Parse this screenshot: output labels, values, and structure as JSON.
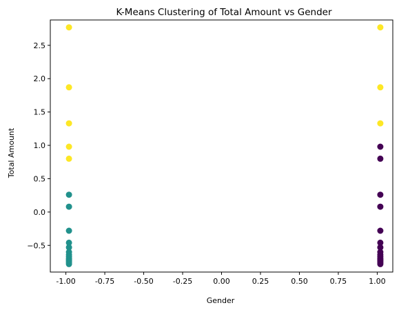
{
  "chart_data": {
    "type": "scatter",
    "title": "K-Means Clustering of Total Amount vs Gender",
    "xlabel": "Gender",
    "ylabel": "Total Amount",
    "xlim": [
      -1.1,
      1.1
    ],
    "ylim": [
      -0.9,
      2.88
    ],
    "xticks": [
      "-1.00",
      "-0.75",
      "-0.50",
      "-0.25",
      "0.00",
      "0.25",
      "0.50",
      "0.75",
      "1.00"
    ],
    "xtick_values": [
      -1.0,
      -0.75,
      -0.5,
      -0.25,
      0.0,
      0.25,
      0.5,
      0.75,
      1.0
    ],
    "yticks": [
      "−0.5",
      "0.0",
      "0.5",
      "1.0",
      "1.5",
      "2.0",
      "2.5"
    ],
    "ytick_values": [
      -0.5,
      0.0,
      0.5,
      1.0,
      1.5,
      2.0,
      2.5
    ],
    "grid": false,
    "colors": {
      "cluster_0": "#440154",
      "cluster_1": "#21918c",
      "cluster_2": "#fde725"
    },
    "series": [
      {
        "cluster": "cluster_2",
        "x": [
          -0.98,
          -0.98,
          -0.98,
          -0.98,
          -0.98,
          1.02,
          1.02,
          1.02
        ],
        "y": [
          2.77,
          1.87,
          1.33,
          0.98,
          0.8,
          2.77,
          1.87,
          1.33
        ]
      },
      {
        "cluster": "cluster_1",
        "x": [
          -0.98,
          -0.98,
          -0.98,
          -0.98,
          -0.98,
          -0.98,
          -0.98,
          -0.98,
          -0.98,
          -0.98,
          -0.98,
          -0.98,
          -0.98
        ],
        "y": [
          0.26,
          0.08,
          -0.28,
          -0.46,
          -0.53,
          -0.6,
          -0.64,
          -0.67,
          -0.7,
          -0.72,
          -0.74,
          -0.76,
          -0.78
        ]
      },
      {
        "cluster": "cluster_0",
        "x": [
          1.02,
          1.02,
          1.02,
          1.02,
          1.02,
          1.02,
          1.02,
          1.02,
          1.02,
          1.02,
          1.02,
          1.02,
          1.02,
          1.02,
          1.02
        ],
        "y": [
          0.98,
          0.8,
          0.26,
          0.08,
          -0.28,
          -0.46,
          -0.53,
          -0.6,
          -0.64,
          -0.67,
          -0.7,
          -0.72,
          -0.74,
          -0.76,
          -0.78
        ]
      }
    ]
  }
}
